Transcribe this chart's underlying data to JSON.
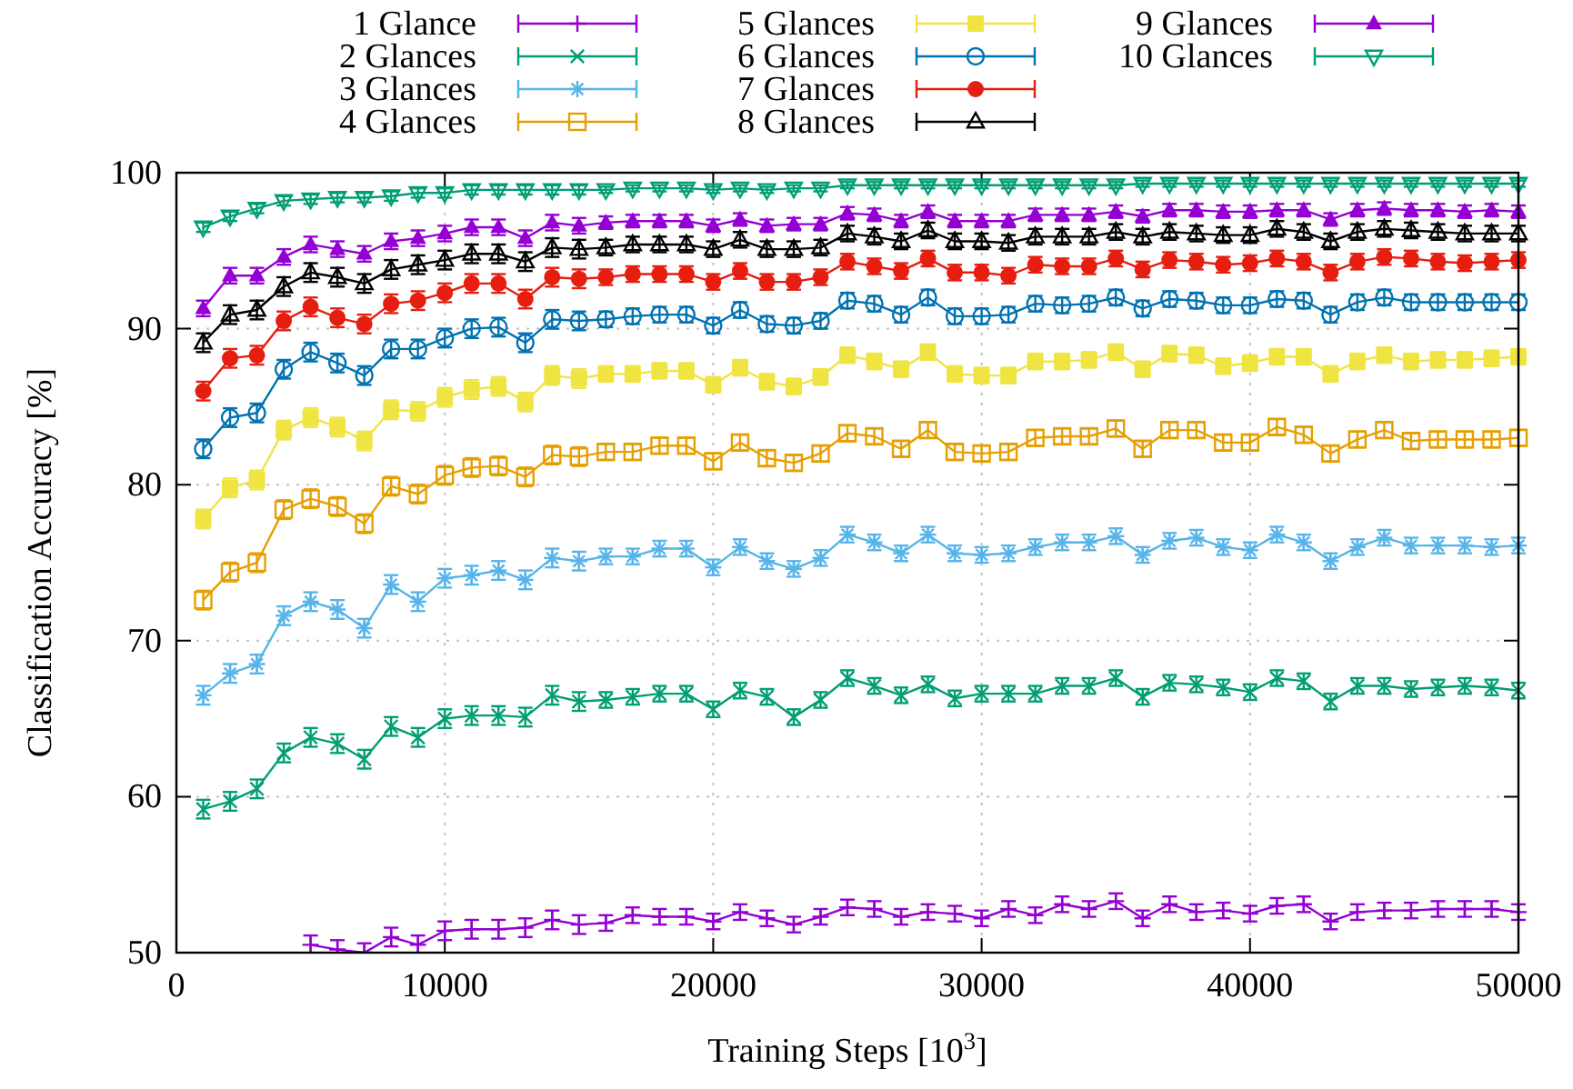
{
  "chart_data": {
    "type": "line",
    "xlabel": "Training Steps [10$^{3}$]",
    "ylabel": "Classification Accuracy [%]",
    "x": [
      1000,
      2000,
      3000,
      4000,
      5000,
      6000,
      7000,
      8000,
      9000,
      10000,
      11000,
      12000,
      13000,
      14000,
      15000,
      16000,
      17000,
      18000,
      19000,
      20000,
      21000,
      22000,
      23000,
      24000,
      25000,
      26000,
      27000,
      28000,
      29000,
      30000,
      31000,
      32000,
      33000,
      34000,
      35000,
      36000,
      37000,
      38000,
      39000,
      40000,
      41000,
      42000,
      43000,
      44000,
      45000,
      46000,
      47000,
      48000,
      49000,
      50000
    ],
    "xlim": [
      0,
      50000
    ],
    "xticks": [
      0,
      10000,
      20000,
      30000,
      40000,
      50000
    ],
    "ylim": [
      50,
      100
    ],
    "yticks": [
      50,
      60,
      70,
      80,
      90,
      100
    ],
    "grid": true,
    "legend": "top",
    "series": [
      {
        "name": "1 Glance",
        "color": "#9400d3",
        "marker": "cross",
        "values": [
          null,
          null,
          null,
          null,
          50.5,
          50.2,
          50.0,
          51.0,
          50.5,
          51.4,
          51.5,
          51.5,
          51.6,
          52.1,
          51.8,
          51.9,
          52.4,
          52.3,
          52.3,
          52.0,
          52.6,
          52.2,
          51.8,
          52.3,
          52.9,
          52.8,
          52.3,
          52.6,
          52.5,
          52.2,
          52.8,
          52.4,
          53.1,
          52.8,
          53.3,
          52.2,
          53.1,
          52.6,
          52.7,
          52.5,
          53.0,
          53.1,
          52.0,
          52.6,
          52.7,
          52.7,
          52.8,
          52.8,
          52.8,
          52.6
        ],
        "errors": [
          null,
          null,
          null,
          null,
          0.6,
          0.6,
          0.6,
          0.6,
          0.6,
          0.6,
          0.6,
          0.6,
          0.6,
          0.6,
          0.6,
          0.5,
          0.5,
          0.5,
          0.5,
          0.5,
          0.5,
          0.5,
          0.5,
          0.5,
          0.5,
          0.5,
          0.5,
          0.5,
          0.5,
          0.5,
          0.5,
          0.5,
          0.5,
          0.5,
          0.5,
          0.5,
          0.5,
          0.5,
          0.5,
          0.5,
          0.5,
          0.5,
          0.5,
          0.5,
          0.5,
          0.5,
          0.5,
          0.5,
          0.5,
          0.5
        ]
      },
      {
        "name": "2 Glances",
        "color": "#009e73",
        "marker": "cross",
        "values": [
          59.2,
          59.7,
          60.5,
          62.8,
          63.8,
          63.4,
          62.4,
          64.5,
          63.8,
          65.0,
          65.2,
          65.2,
          65.1,
          66.5,
          66.1,
          66.2,
          66.4,
          66.6,
          66.6,
          65.6,
          66.8,
          66.4,
          65.1,
          66.2,
          67.6,
          67.1,
          66.5,
          67.2,
          66.3,
          66.6,
          66.6,
          66.6,
          67.1,
          67.1,
          67.6,
          66.4,
          67.3,
          67.2,
          67.0,
          66.7,
          67.6,
          67.4,
          66.1,
          67.1,
          67.1,
          66.9,
          67.0,
          67.1,
          67.0,
          66.8
        ],
        "errors": [
          0.6,
          0.6,
          0.6,
          0.6,
          0.6,
          0.6,
          0.6,
          0.6,
          0.6,
          0.6,
          0.6,
          0.6,
          0.6,
          0.6,
          0.6,
          0.5,
          0.5,
          0.5,
          0.5,
          0.5,
          0.5,
          0.5,
          0.5,
          0.5,
          0.5,
          0.5,
          0.5,
          0.5,
          0.5,
          0.5,
          0.5,
          0.5,
          0.5,
          0.5,
          0.5,
          0.5,
          0.5,
          0.5,
          0.5,
          0.5,
          0.5,
          0.5,
          0.5,
          0.5,
          0.5,
          0.5,
          0.5,
          0.5,
          0.5,
          0.5
        ]
      },
      {
        "name": "3 Glances",
        "color": "#56b4e9",
        "marker": "cross",
        "values": [
          66.5,
          67.9,
          68.5,
          71.6,
          72.5,
          72.0,
          70.8,
          73.6,
          72.5,
          74.0,
          74.2,
          74.5,
          73.9,
          75.3,
          75.1,
          75.4,
          75.4,
          75.9,
          75.9,
          74.7,
          76.0,
          75.1,
          74.6,
          75.3,
          76.8,
          76.3,
          75.6,
          76.8,
          75.6,
          75.5,
          75.6,
          76.0,
          76.3,
          76.3,
          76.7,
          75.5,
          76.4,
          76.6,
          76.0,
          75.8,
          76.8,
          76.3,
          75.1,
          76.0,
          76.6,
          76.1,
          76.1,
          76.1,
          76.0,
          76.1
        ],
        "errors": [
          0.6,
          0.6,
          0.6,
          0.6,
          0.6,
          0.6,
          0.6,
          0.6,
          0.6,
          0.6,
          0.6,
          0.6,
          0.6,
          0.6,
          0.6,
          0.5,
          0.5,
          0.5,
          0.5,
          0.5,
          0.5,
          0.5,
          0.5,
          0.5,
          0.5,
          0.5,
          0.5,
          0.5,
          0.5,
          0.5,
          0.5,
          0.5,
          0.5,
          0.5,
          0.5,
          0.5,
          0.5,
          0.5,
          0.5,
          0.5,
          0.5,
          0.5,
          0.5,
          0.5,
          0.5,
          0.5,
          0.5,
          0.5,
          0.5,
          0.5
        ]
      },
      {
        "name": "4 Glances",
        "color": "#e69f00",
        "marker": "square",
        "values": [
          72.6,
          74.4,
          75.0,
          78.4,
          79.1,
          78.6,
          77.5,
          79.9,
          79.4,
          80.6,
          81.1,
          81.2,
          80.5,
          81.9,
          81.8,
          82.1,
          82.1,
          82.5,
          82.5,
          81.5,
          82.7,
          81.7,
          81.4,
          82.0,
          83.3,
          83.1,
          82.3,
          83.5,
          82.1,
          82.0,
          82.1,
          83.0,
          83.1,
          83.1,
          83.6,
          82.3,
          83.5,
          83.5,
          82.7,
          82.7,
          83.7,
          83.2,
          82.0,
          82.9,
          83.5,
          82.8,
          82.9,
          82.9,
          82.9,
          83.0
        ],
        "errors": [
          0.6,
          0.6,
          0.6,
          0.6,
          0.6,
          0.6,
          0.6,
          0.6,
          0.6,
          0.6,
          0.6,
          0.6,
          0.6,
          0.6,
          0.6,
          0.5,
          0.5,
          0.5,
          0.5,
          0.5,
          0.5,
          0.5,
          0.5,
          0.5,
          0.5,
          0.5,
          0.5,
          0.5,
          0.5,
          0.5,
          0.5,
          0.5,
          0.5,
          0.5,
          0.5,
          0.5,
          0.5,
          0.5,
          0.5,
          0.5,
          0.5,
          0.5,
          0.5,
          0.5,
          0.5,
          0.5,
          0.5,
          0.5,
          0.5,
          0.5
        ]
      },
      {
        "name": "5 Glances",
        "color": "#f0e442",
        "marker": "square",
        "values": [
          77.8,
          79.8,
          80.3,
          83.5,
          84.3,
          83.7,
          82.8,
          84.8,
          84.7,
          85.6,
          86.1,
          86.3,
          85.3,
          87.0,
          86.8,
          87.1,
          87.1,
          87.3,
          87.3,
          86.4,
          87.5,
          86.6,
          86.3,
          86.9,
          88.3,
          87.9,
          87.4,
          88.5,
          87.1,
          87.0,
          87.0,
          87.9,
          87.9,
          88.0,
          88.5,
          87.4,
          88.4,
          88.3,
          87.6,
          87.8,
          88.2,
          88.2,
          87.1,
          87.9,
          88.3,
          87.9,
          88.0,
          88.0,
          88.1,
          88.2
        ],
        "errors": [
          0.6,
          0.6,
          0.6,
          0.6,
          0.6,
          0.6,
          0.6,
          0.6,
          0.6,
          0.6,
          0.6,
          0.6,
          0.6,
          0.6,
          0.6,
          0.5,
          0.5,
          0.5,
          0.5,
          0.5,
          0.5,
          0.5,
          0.5,
          0.5,
          0.5,
          0.5,
          0.5,
          0.5,
          0.5,
          0.5,
          0.5,
          0.5,
          0.5,
          0.5,
          0.5,
          0.5,
          0.5,
          0.5,
          0.5,
          0.5,
          0.5,
          0.5,
          0.5,
          0.5,
          0.5,
          0.5,
          0.5,
          0.5,
          0.5,
          0.5
        ]
      },
      {
        "name": "6 Glances",
        "color": "#0072b2",
        "marker": "circle",
        "values": [
          82.3,
          84.3,
          84.6,
          87.4,
          88.5,
          87.8,
          87.0,
          88.7,
          88.7,
          89.4,
          90.0,
          90.1,
          89.1,
          90.6,
          90.5,
          90.6,
          90.8,
          90.9,
          90.9,
          90.2,
          91.2,
          90.3,
          90.2,
          90.5,
          91.8,
          91.6,
          90.9,
          92.0,
          90.8,
          90.8,
          90.9,
          91.6,
          91.5,
          91.6,
          92.0,
          91.3,
          91.9,
          91.8,
          91.5,
          91.5,
          91.9,
          91.8,
          90.9,
          91.7,
          92.0,
          91.7,
          91.7,
          91.7,
          91.7,
          91.7
        ],
        "errors": [
          0.6,
          0.6,
          0.6,
          0.6,
          0.6,
          0.6,
          0.6,
          0.6,
          0.6,
          0.6,
          0.6,
          0.6,
          0.6,
          0.6,
          0.6,
          0.5,
          0.5,
          0.5,
          0.5,
          0.5,
          0.5,
          0.5,
          0.5,
          0.5,
          0.5,
          0.5,
          0.5,
          0.5,
          0.5,
          0.5,
          0.5,
          0.5,
          0.5,
          0.5,
          0.5,
          0.5,
          0.5,
          0.5,
          0.5,
          0.5,
          0.5,
          0.5,
          0.5,
          0.5,
          0.5,
          0.5,
          0.5,
          0.5,
          0.5,
          0.5
        ]
      },
      {
        "name": "7 Glances",
        "color": "#e51e10",
        "marker": "circle",
        "values": [
          86.0,
          88.1,
          88.3,
          90.5,
          91.4,
          90.7,
          90.3,
          91.6,
          91.8,
          92.3,
          92.9,
          92.9,
          91.9,
          93.3,
          93.2,
          93.3,
          93.5,
          93.5,
          93.5,
          93.0,
          93.7,
          93.0,
          93.0,
          93.3,
          94.3,
          94.0,
          93.7,
          94.5,
          93.6,
          93.6,
          93.4,
          94.1,
          94.0,
          94.0,
          94.5,
          93.8,
          94.4,
          94.3,
          94.1,
          94.2,
          94.5,
          94.3,
          93.6,
          94.3,
          94.6,
          94.5,
          94.3,
          94.2,
          94.3,
          94.4
        ],
        "errors": [
          0.6,
          0.6,
          0.6,
          0.6,
          0.6,
          0.6,
          0.6,
          0.6,
          0.6,
          0.6,
          0.6,
          0.6,
          0.6,
          0.6,
          0.6,
          0.5,
          0.5,
          0.5,
          0.5,
          0.5,
          0.5,
          0.5,
          0.5,
          0.5,
          0.5,
          0.5,
          0.5,
          0.5,
          0.5,
          0.5,
          0.5,
          0.5,
          0.5,
          0.5,
          0.5,
          0.5,
          0.5,
          0.5,
          0.5,
          0.5,
          0.5,
          0.5,
          0.5,
          0.5,
          0.5,
          0.5,
          0.5,
          0.5,
          0.5,
          0.5
        ]
      },
      {
        "name": "8 Glances",
        "color": "#000000",
        "marker": "triangle",
        "values": [
          89.1,
          90.9,
          91.2,
          92.7,
          93.6,
          93.3,
          92.9,
          93.8,
          94.1,
          94.4,
          94.8,
          94.8,
          94.3,
          95.2,
          95.1,
          95.2,
          95.4,
          95.4,
          95.4,
          95.1,
          95.7,
          95.1,
          95.1,
          95.2,
          96.1,
          95.9,
          95.6,
          96.3,
          95.6,
          95.6,
          95.5,
          95.9,
          95.9,
          95.9,
          96.2,
          95.9,
          96.2,
          96.1,
          96.0,
          96.0,
          96.4,
          96.2,
          95.6,
          96.2,
          96.4,
          96.3,
          96.2,
          96.1,
          96.1,
          96.1
        ],
        "errors": [
          0.6,
          0.6,
          0.6,
          0.6,
          0.6,
          0.6,
          0.6,
          0.6,
          0.6,
          0.6,
          0.6,
          0.6,
          0.6,
          0.6,
          0.6,
          0.5,
          0.5,
          0.5,
          0.5,
          0.5,
          0.5,
          0.5,
          0.5,
          0.5,
          0.5,
          0.5,
          0.5,
          0.5,
          0.5,
          0.5,
          0.5,
          0.5,
          0.5,
          0.5,
          0.5,
          0.5,
          0.5,
          0.5,
          0.5,
          0.5,
          0.5,
          0.5,
          0.5,
          0.5,
          0.5,
          0.5,
          0.5,
          0.5,
          0.5,
          0.5
        ]
      },
      {
        "name": "9 Glances",
        "color": "#9400d4",
        "marker": "triangle",
        "values": [
          91.3,
          93.4,
          93.4,
          94.6,
          95.4,
          95.1,
          94.8,
          95.6,
          95.8,
          96.1,
          96.5,
          96.5,
          95.8,
          96.8,
          96.6,
          96.8,
          96.9,
          96.9,
          96.9,
          96.6,
          97.0,
          96.6,
          96.7,
          96.7,
          97.4,
          97.3,
          96.9,
          97.5,
          96.9,
          96.9,
          96.9,
          97.3,
          97.3,
          97.3,
          97.5,
          97.2,
          97.6,
          97.6,
          97.5,
          97.5,
          97.6,
          97.6,
          97.0,
          97.6,
          97.7,
          97.6,
          97.6,
          97.5,
          97.6,
          97.5
        ],
        "errors": [
          0.5,
          0.5,
          0.5,
          0.5,
          0.5,
          0.5,
          0.5,
          0.5,
          0.5,
          0.5,
          0.5,
          0.5,
          0.5,
          0.5,
          0.5,
          0.4,
          0.4,
          0.4,
          0.4,
          0.4,
          0.4,
          0.4,
          0.4,
          0.4,
          0.4,
          0.4,
          0.4,
          0.4,
          0.4,
          0.4,
          0.4,
          0.4,
          0.4,
          0.4,
          0.4,
          0.4,
          0.4,
          0.4,
          0.4,
          0.4,
          0.4,
          0.4,
          0.4,
          0.4,
          0.4,
          0.4,
          0.4,
          0.4,
          0.4,
          0.4
        ]
      },
      {
        "name": "10 Glances",
        "color": "#009e74",
        "marker": "triangle",
        "values": [
          96.5,
          97.2,
          97.7,
          98.2,
          98.3,
          98.4,
          98.4,
          98.5,
          98.7,
          98.7,
          98.9,
          98.9,
          98.9,
          98.9,
          98.9,
          98.9,
          99.0,
          99.0,
          99.0,
          98.9,
          99.0,
          98.9,
          99.0,
          99.0,
          99.2,
          99.2,
          99.2,
          99.2,
          99.2,
          99.2,
          99.2,
          99.2,
          99.2,
          99.2,
          99.2,
          99.3,
          99.3,
          99.3,
          99.3,
          99.3,
          99.3,
          99.3,
          99.3,
          99.3,
          99.3,
          99.3,
          99.3,
          99.3,
          99.3,
          99.3
        ],
        "errors": [
          0.3,
          0.3,
          0.3,
          0.3,
          0.3,
          0.3,
          0.3,
          0.3,
          0.3,
          0.3,
          0.3,
          0.3,
          0.3,
          0.3,
          0.3,
          0.2,
          0.2,
          0.2,
          0.2,
          0.2,
          0.2,
          0.2,
          0.2,
          0.2,
          0.2,
          0.2,
          0.2,
          0.2,
          0.2,
          0.2,
          0.2,
          0.2,
          0.2,
          0.2,
          0.2,
          0.2,
          0.2,
          0.2,
          0.2,
          0.2,
          0.2,
          0.2,
          0.2,
          0.2,
          0.2,
          0.2,
          0.2,
          0.2,
          0.2,
          0.2
        ]
      }
    ]
  }
}
